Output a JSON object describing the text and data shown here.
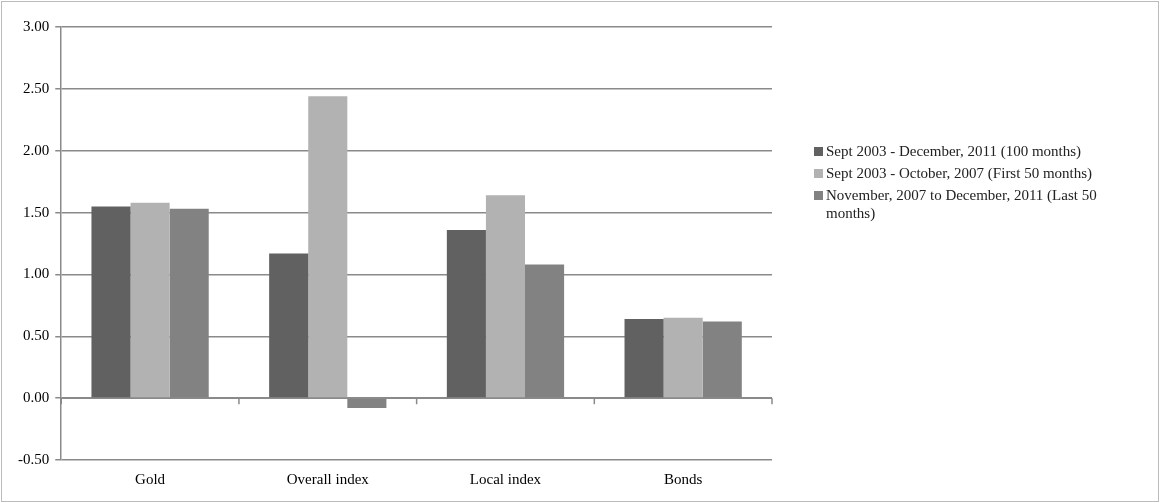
{
  "chart_data": {
    "type": "bar",
    "categories": [
      "Gold",
      "Overall index",
      "Local index",
      "Bonds"
    ],
    "series": [
      {
        "name": "Sept 2003 - December, 2011 (100 months)",
        "color": "#616161",
        "values": [
          1.55,
          1.17,
          1.36,
          0.64
        ]
      },
      {
        "name": "Sept 2003 - October, 2007 (First 50 months)",
        "color": "#b2b2b2",
        "values": [
          1.58,
          2.44,
          1.64,
          0.65
        ]
      },
      {
        "name": "November, 2007 to December, 2011 (Last 50 months)",
        "color": "#828282",
        "values": [
          1.53,
          -0.08,
          1.08,
          0.62
        ]
      }
    ],
    "ylim": [
      -0.5,
      3
    ],
    "yticks": [
      {
        "value": -0.5,
        "label": "-0.50"
      },
      {
        "value": 0,
        "label": "0.00"
      },
      {
        "value": 0.5,
        "label": "0.50"
      },
      {
        "value": 1,
        "label": "1.00"
      },
      {
        "value": 1.5,
        "label": "1.50"
      },
      {
        "value": 2,
        "label": "2.00"
      },
      {
        "value": 2.5,
        "label": "2.50"
      },
      {
        "value": 3,
        "label": "3.00"
      }
    ],
    "grid": "y",
    "legend": "right"
  }
}
